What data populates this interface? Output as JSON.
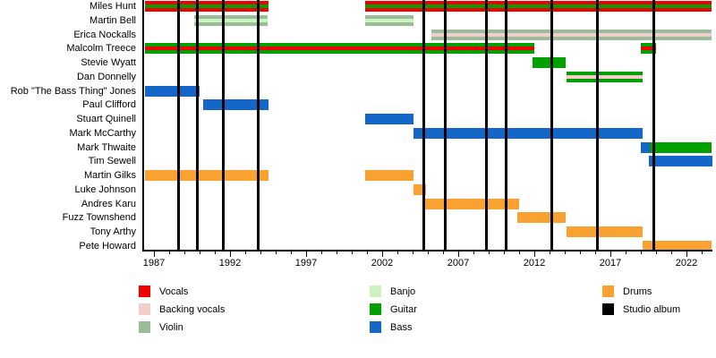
{
  "chart_data": {
    "type": "timeline",
    "description": "Band members timeline (gantt-style) with studio album markers",
    "x_axis": {
      "major_ticks": [
        1987,
        1992,
        1997,
        2002,
        2007,
        2012,
        2017,
        2022
      ],
      "minor_tick_interval_years": 1,
      "range": [
        1986.4,
        2023.65
      ]
    },
    "colors": {
      "vocals": "#F00000",
      "backing_vocals": "#F5CCCC",
      "violin": "#97BE97",
      "banjo": "#CCF3BF",
      "guitar": "#00A000",
      "bass": "#1466C8",
      "drums": "#F9A231",
      "album": "#000000"
    },
    "members": [
      {
        "name": "Miles Hunt",
        "segments": [
          {
            "start": 1986.4,
            "end": 1994.5,
            "stripes": [
              "vocals",
              "guitar",
              "vocals"
            ]
          },
          {
            "start": 2000.9,
            "end": 2023.65,
            "stripes": [
              "vocals",
              "guitar",
              "vocals"
            ]
          }
        ]
      },
      {
        "name": "Martin Bell",
        "segments": [
          {
            "start": 1989.65,
            "end": 1994.5,
            "stripes": [
              "violin",
              "banjo",
              "violin"
            ]
          },
          {
            "start": 2000.9,
            "end": 2004.1,
            "stripes": [
              "violin",
              "banjo",
              "violin"
            ]
          }
        ]
      },
      {
        "name": "Erica Nockalls",
        "segments": [
          {
            "start": 2005.25,
            "end": 2023.65,
            "stripes": [
              "violin",
              "backing_vocals",
              "violin"
            ]
          }
        ]
      },
      {
        "name": "Malcolm Treece",
        "segments": [
          {
            "start": 1986.4,
            "end": 2012.0,
            "stripes": [
              "guitar",
              "vocals",
              "guitar"
            ]
          },
          {
            "start": 2019.0,
            "end": 2020.0,
            "stripes": [
              "guitar",
              "vocals",
              "guitar"
            ]
          }
        ]
      },
      {
        "name": "Stevie Wyatt",
        "segments": [
          {
            "start": 2011.9,
            "end": 2014.1,
            "stripes": [
              "guitar"
            ]
          }
        ]
      },
      {
        "name": "Dan Donnelly",
        "segments": [
          {
            "start": 2014.1,
            "end": 2019.1,
            "stripes": [
              "guitar",
              "backing_vocals",
              "guitar"
            ]
          }
        ]
      },
      {
        "name": "Rob \"The Bass Thing\" Jones",
        "segments": [
          {
            "start": 1986.4,
            "end": 1990.0,
            "stripes": [
              "bass"
            ]
          }
        ]
      },
      {
        "name": "Paul Clifford",
        "segments": [
          {
            "start": 1990.25,
            "end": 1994.55,
            "stripes": [
              "bass"
            ]
          }
        ]
      },
      {
        "name": "Stuart Quinell",
        "segments": [
          {
            "start": 2000.9,
            "end": 2004.05,
            "stripes": [
              "bass"
            ]
          }
        ]
      },
      {
        "name": "Mark McCarthy",
        "segments": [
          {
            "start": 2004.05,
            "end": 2019.1,
            "stripes": [
              "bass"
            ]
          }
        ]
      },
      {
        "name": "Mark Thwaite",
        "segments": [
          {
            "start": 2019.0,
            "end": 2019.6,
            "stripes": [
              "bass"
            ]
          },
          {
            "start": 2019.6,
            "end": 2023.65,
            "stripes": [
              "guitar"
            ]
          }
        ]
      },
      {
        "name": "Tim Sewell",
        "segments": [
          {
            "start": 2019.5,
            "end": 2023.65,
            "stripes": [
              "bass"
            ]
          }
        ]
      },
      {
        "name": "Martin Gilks",
        "segments": [
          {
            "start": 1986.4,
            "end": 1994.5,
            "stripes": [
              "drums"
            ]
          },
          {
            "start": 2000.9,
            "end": 2004.05,
            "stripes": [
              "drums"
            ]
          }
        ]
      },
      {
        "name": "Luke Johnson",
        "segments": [
          {
            "start": 2004.05,
            "end": 2004.85,
            "stripes": [
              "drums"
            ]
          }
        ]
      },
      {
        "name": "Andres Karu",
        "segments": [
          {
            "start": 2004.8,
            "end": 2011.0,
            "stripes": [
              "drums"
            ]
          }
        ]
      },
      {
        "name": "Fuzz Townshend",
        "segments": [
          {
            "start": 2010.9,
            "end": 2014.1,
            "stripes": [
              "drums"
            ]
          }
        ]
      },
      {
        "name": "Tony Arthy",
        "segments": [
          {
            "start": 2014.1,
            "end": 2019.1,
            "stripes": [
              "drums"
            ]
          }
        ]
      },
      {
        "name": "Pete Howard",
        "segments": [
          {
            "start": 2019.1,
            "end": 2023.65,
            "stripes": [
              "drums"
            ]
          }
        ]
      }
    ],
    "studio_albums": [
      1988.6,
      1989.8,
      1991.5,
      1993.8,
      2004.7,
      2006.1,
      2008.8,
      2010.1,
      2013.1,
      2016.1,
      2019.8
    ]
  },
  "legend": {
    "columns": [
      {
        "items": [
          {
            "label": "Vocals",
            "role": "vocals"
          },
          {
            "label": "Backing vocals",
            "role": "backing_vocals"
          },
          {
            "label": "Violin",
            "role": "violin"
          }
        ]
      },
      {
        "items": [
          {
            "label": "Banjo",
            "role": "banjo"
          },
          {
            "label": "Guitar",
            "role": "guitar"
          },
          {
            "label": "Bass",
            "role": "bass"
          }
        ]
      },
      {
        "items": [
          {
            "label": "Drums",
            "role": "drums"
          },
          {
            "label": "Studio album",
            "role": "album"
          }
        ]
      }
    ]
  }
}
